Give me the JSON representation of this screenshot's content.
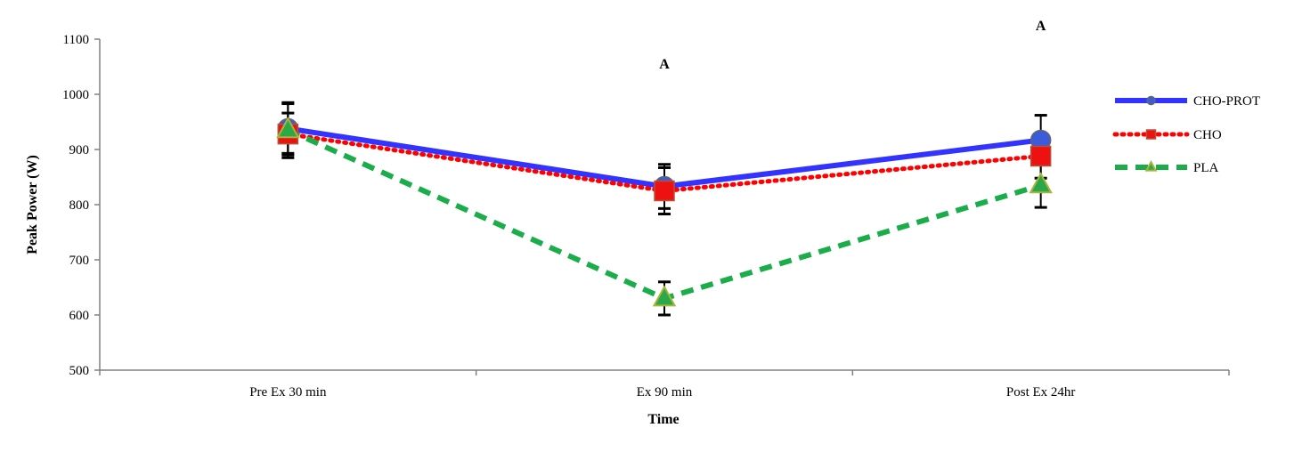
{
  "chart_data": {
    "type": "line",
    "title": "",
    "xlabel": "Time",
    "ylabel": "Peak Power (W)",
    "ylim": [
      500,
      1100
    ],
    "yticks": [
      500,
      600,
      700,
      800,
      900,
      1000,
      1100
    ],
    "ytick_labels": [
      "500",
      "600",
      "700",
      "800",
      "900",
      "1000",
      "1100"
    ],
    "categories": [
      "Pre Ex 30 min",
      "Ex 90 min",
      "Post Ex 24hr"
    ],
    "grid": false,
    "legend_position": "right",
    "series": [
      {
        "name": "CHO-PROT",
        "values": [
          938,
          833,
          917
        ],
        "error": [
          45,
          40,
          45
        ],
        "color": "#3333ff",
        "line_style": "solid",
        "marker": "circle",
        "marker_fill": "#3b5bdb"
      },
      {
        "name": "CHO",
        "values": [
          928,
          825,
          888
        ],
        "error": [
          38,
          42,
          40
        ],
        "color": "#ff0000",
        "line_style": "dotted",
        "marker": "square",
        "marker_fill": "#ee1111"
      },
      {
        "name": "PLA",
        "values": [
          935,
          630,
          835
        ],
        "error": [
          50,
          30,
          40
        ],
        "color": "#1aad4a",
        "line_style": "dashed",
        "marker": "triangle",
        "marker_fill": "#2aa84a"
      }
    ],
    "annotations": [
      {
        "text": "A",
        "category": "Ex 90 min",
        "y": 1055
      },
      {
        "text": "A",
        "category": "Post Ex 24hr",
        "y": 1124
      }
    ]
  }
}
